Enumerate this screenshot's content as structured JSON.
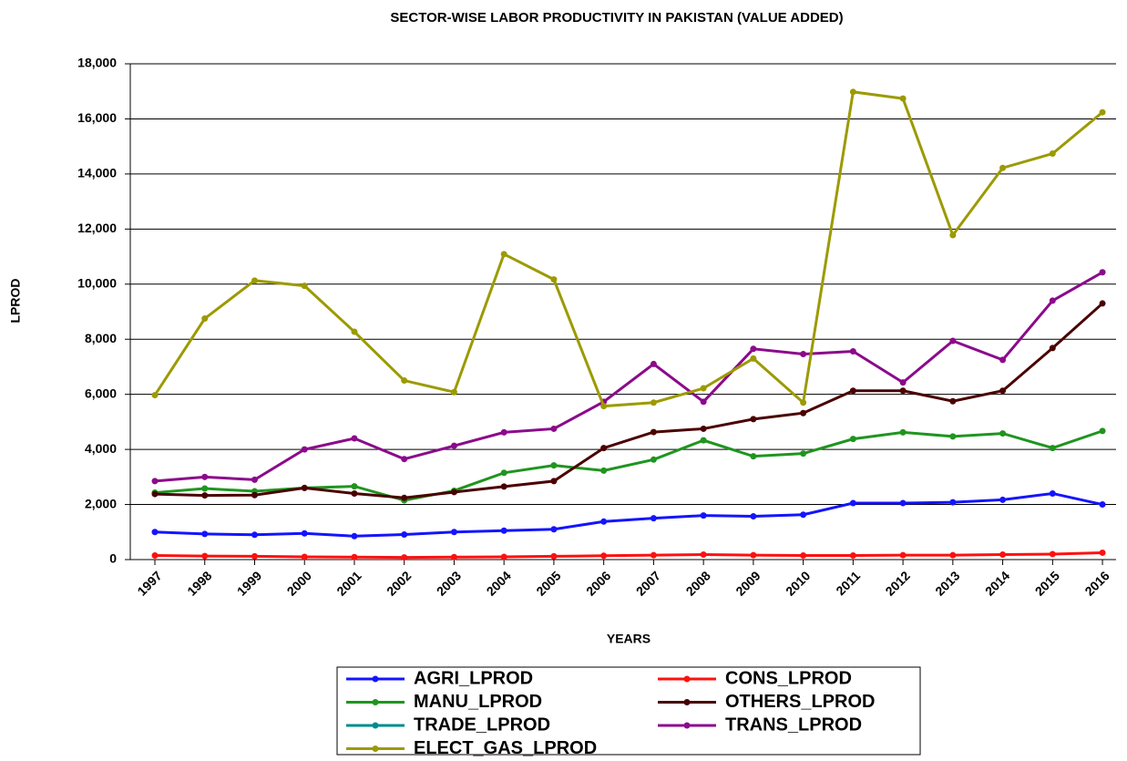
{
  "chart_data": {
    "type": "line",
    "title": "SECTOR-WISE LABOR PRODUCTIVITY IN PAKISTAN (VALUE ADDED)",
    "x_label": "YEARS",
    "y_label": "LPROD",
    "categories": [
      "1997",
      "1998",
      "1999",
      "2000",
      "2001",
      "2002",
      "2003",
      "2004",
      "2005",
      "2006",
      "2007",
      "2008",
      "2009",
      "2010",
      "2011",
      "2012",
      "2013",
      "2014",
      "2015",
      "2016"
    ],
    "ylim": [
      0,
      18000
    ],
    "yticks": [
      0,
      {
        "value": 2000,
        "label": "2,000"
      },
      {
        "value": 4000,
        "label": "4,000"
      },
      {
        "value": 6000,
        "label": "6,000"
      },
      {
        "value": 8000,
        "label": "8,000"
      },
      {
        "value": 10000,
        "label": "10,000"
      },
      {
        "value": 12000,
        "label": "12,000"
      },
      {
        "value": 14000,
        "label": "14,000"
      },
      {
        "value": 16000,
        "label": "16,000"
      },
      {
        "value": 18000,
        "label": "18,000"
      }
    ],
    "grid": true,
    "legend": "bottom",
    "series": [
      {
        "name": "AGRI_LPROD",
        "color": "#1414ff",
        "values": [
          1000,
          930,
          900,
          950,
          850,
          910,
          1000,
          1050,
          1100,
          1380,
          1500,
          1600,
          1570,
          1630,
          2050,
          2050,
          2080,
          2170,
          2400,
          2000
        ]
      },
      {
        "name": "CONS_LPROD",
        "color": "#ff1010",
        "values": [
          150,
          130,
          120,
          100,
          90,
          80,
          90,
          100,
          120,
          140,
          160,
          180,
          160,
          150,
          150,
          160,
          160,
          180,
          200,
          250
        ]
      },
      {
        "name": "MANU_LPROD",
        "color": "#1f951f",
        "values": [
          2430,
          2580,
          2480,
          2600,
          2660,
          2150,
          2500,
          3150,
          3420,
          3230,
          3630,
          4330,
          3750,
          3850,
          4380,
          4620,
          4470,
          4580,
          4050,
          4670
        ]
      },
      {
        "name": "OTHERS_LPROD",
        "color": "#4a0000",
        "values": [
          2380,
          2330,
          2340,
          2600,
          2400,
          2240,
          2450,
          2650,
          2850,
          4050,
          4630,
          4750,
          5100,
          5320,
          6130,
          6130,
          5750,
          6130,
          7680,
          9300
        ]
      },
      {
        "name": "TRADE_LPROD",
        "color": "#008b8b",
        "values": [
          null,
          null,
          null,
          null,
          null,
          null,
          null,
          null,
          null,
          null,
          null,
          null,
          null,
          null,
          null,
          null,
          null,
          null,
          null,
          null
        ]
      },
      {
        "name": "TRANS_LPROD",
        "color": "#8b0a8b",
        "values": [
          2850,
          3000,
          2900,
          4000,
          4400,
          3650,
          4130,
          4620,
          4750,
          5730,
          7100,
          5730,
          7650,
          7460,
          7560,
          6430,
          7940,
          7250,
          9400,
          10430
        ]
      },
      {
        "name": "ELECT_GAS_LPROD",
        "color": "#9c9a00",
        "values": [
          5970,
          8750,
          10130,
          9940,
          8270,
          6500,
          6080,
          11090,
          10170,
          5570,
          5700,
          6220,
          7300,
          5700,
          16980,
          16740,
          11780,
          14220,
          14740,
          16240
        ]
      }
    ]
  }
}
